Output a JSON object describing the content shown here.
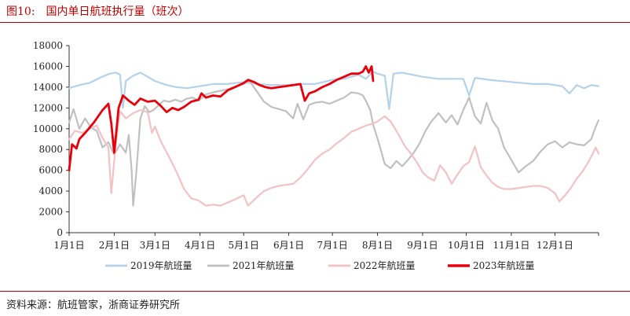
{
  "figure": {
    "number": "图10:",
    "title": "国内单日航班执行量（班次）",
    "source": "资料来源：航班管家，浙商证券研究所"
  },
  "chart_data": {
    "type": "line",
    "title": "国内单日航班执行量（班次）",
    "xlabel": "",
    "ylabel": "",
    "ylim": [
      0,
      18000
    ],
    "yticks": [
      0,
      2000,
      4000,
      6000,
      8000,
      10000,
      12000,
      14000,
      16000,
      18000
    ],
    "x_unit": "day of year (1 = 1月1日)",
    "xlim": [
      1,
      365
    ],
    "xticks": [
      {
        "day": 1,
        "label": "1月1日"
      },
      {
        "day": 32,
        "label": "2月1日"
      },
      {
        "day": 60,
        "label": "3月1日"
      },
      {
        "day": 91,
        "label": "4月1日"
      },
      {
        "day": 121,
        "label": "5月1日"
      },
      {
        "day": 152,
        "label": "6月1日"
      },
      {
        "day": 182,
        "label": "7月1日"
      },
      {
        "day": 213,
        "label": "8月1日"
      },
      {
        "day": 244,
        "label": "9月1日"
      },
      {
        "day": 274,
        "label": "10月1日"
      },
      {
        "day": 305,
        "label": "11月1日"
      },
      {
        "day": 335,
        "label": "12月1日"
      }
    ],
    "grid": false,
    "legend_position": "bottom",
    "series": [
      {
        "name": "2019年航班量",
        "color": "#b4d2ea",
        "width": 2.2,
        "points": [
          [
            1,
            13900
          ],
          [
            8,
            14200
          ],
          [
            15,
            14400
          ],
          [
            22,
            14900
          ],
          [
            29,
            15300
          ],
          [
            33,
            15400
          ],
          [
            36,
            15200
          ],
          [
            38,
            12000
          ],
          [
            40,
            14600
          ],
          [
            45,
            15100
          ],
          [
            50,
            15400
          ],
          [
            55,
            15000
          ],
          [
            60,
            14600
          ],
          [
            68,
            14200
          ],
          [
            75,
            14000
          ],
          [
            82,
            13900
          ],
          [
            91,
            14100
          ],
          [
            100,
            14300
          ],
          [
            110,
            14300
          ],
          [
            121,
            14500
          ],
          [
            130,
            14300
          ],
          [
            140,
            14200
          ],
          [
            150,
            14200
          ],
          [
            160,
            14300
          ],
          [
            170,
            14300
          ],
          [
            182,
            14700
          ],
          [
            190,
            14800
          ],
          [
            200,
            15200
          ],
          [
            205,
            14800
          ],
          [
            210,
            15500
          ],
          [
            213,
            15300
          ],
          [
            218,
            15100
          ],
          [
            221,
            11900
          ],
          [
            224,
            15300
          ],
          [
            230,
            15400
          ],
          [
            244,
            15000
          ],
          [
            255,
            14800
          ],
          [
            265,
            14800
          ],
          [
            272,
            14800
          ],
          [
            276,
            13200
          ],
          [
            280,
            14900
          ],
          [
            290,
            14700
          ],
          [
            305,
            14500
          ],
          [
            320,
            14300
          ],
          [
            330,
            14300
          ],
          [
            340,
            14100
          ],
          [
            345,
            13400
          ],
          [
            350,
            14200
          ],
          [
            355,
            13900
          ],
          [
            360,
            14200
          ],
          [
            365,
            14100
          ]
        ]
      },
      {
        "name": "2021年航班量",
        "color": "#c0c0c0",
        "width": 2.2,
        "points": [
          [
            1,
            10600
          ],
          [
            4,
            11900
          ],
          [
            8,
            10000
          ],
          [
            12,
            11000
          ],
          [
            16,
            10100
          ],
          [
            20,
            9800
          ],
          [
            24,
            8200
          ],
          [
            28,
            8700
          ],
          [
            32,
            7500
          ],
          [
            36,
            8500
          ],
          [
            40,
            7700
          ],
          [
            42,
            9400
          ],
          [
            44,
            6000
          ],
          [
            45,
            2600
          ],
          [
            47,
            5500
          ],
          [
            50,
            11000
          ],
          [
            53,
            12200
          ],
          [
            56,
            11600
          ],
          [
            59,
            11800
          ],
          [
            62,
            12200
          ],
          [
            66,
            12700
          ],
          [
            70,
            12600
          ],
          [
            74,
            12800
          ],
          [
            78,
            12600
          ],
          [
            82,
            12900
          ],
          [
            86,
            13000
          ],
          [
            90,
            12700
          ],
          [
            95,
            13300
          ],
          [
            100,
            13500
          ],
          [
            110,
            13800
          ],
          [
            118,
            14200
          ],
          [
            121,
            14300
          ],
          [
            125,
            14600
          ],
          [
            130,
            13600
          ],
          [
            135,
            12600
          ],
          [
            140,
            12100
          ],
          [
            145,
            11900
          ],
          [
            150,
            11700
          ],
          [
            155,
            11000
          ],
          [
            158,
            12400
          ],
          [
            162,
            10900
          ],
          [
            166,
            12300
          ],
          [
            170,
            12500
          ],
          [
            175,
            12600
          ],
          [
            180,
            12400
          ],
          [
            185,
            12700
          ],
          [
            190,
            13000
          ],
          [
            195,
            13500
          ],
          [
            200,
            13400
          ],
          [
            203,
            13200
          ],
          [
            205,
            12700
          ],
          [
            208,
            11800
          ],
          [
            210,
            10400
          ],
          [
            214,
            8600
          ],
          [
            218,
            6600
          ],
          [
            222,
            6200
          ],
          [
            226,
            6900
          ],
          [
            230,
            6400
          ],
          [
            234,
            7000
          ],
          [
            238,
            7700
          ],
          [
            242,
            8600
          ],
          [
            246,
            9800
          ],
          [
            250,
            10700
          ],
          [
            255,
            11500
          ],
          [
            260,
            10600
          ],
          [
            264,
            11300
          ],
          [
            268,
            10400
          ],
          [
            272,
            11800
          ],
          [
            276,
            13000
          ],
          [
            280,
            11200
          ],
          [
            284,
            10500
          ],
          [
            288,
            12500
          ],
          [
            292,
            10800
          ],
          [
            296,
            10000
          ],
          [
            300,
            8200
          ],
          [
            305,
            7000
          ],
          [
            310,
            5800
          ],
          [
            315,
            6400
          ],
          [
            320,
            6900
          ],
          [
            325,
            7800
          ],
          [
            330,
            8500
          ],
          [
            335,
            8800
          ],
          [
            340,
            8200
          ],
          [
            345,
            8700
          ],
          [
            350,
            8500
          ],
          [
            355,
            8400
          ],
          [
            360,
            9000
          ],
          [
            363,
            10200
          ],
          [
            365,
            10800
          ]
        ]
      },
      {
        "name": "2022年航班量",
        "color": "#f2c2c4",
        "width": 2.2,
        "points": [
          [
            1,
            9000
          ],
          [
            5,
            9800
          ],
          [
            10,
            9600
          ],
          [
            15,
            10000
          ],
          [
            20,
            10300
          ],
          [
            24,
            9100
          ],
          [
            28,
            8200
          ],
          [
            30,
            3800
          ],
          [
            33,
            8500
          ],
          [
            36,
            11700
          ],
          [
            40,
            11000
          ],
          [
            45,
            11500
          ],
          [
            50,
            11800
          ],
          [
            55,
            11600
          ],
          [
            58,
            9600
          ],
          [
            60,
            10200
          ],
          [
            64,
            8800
          ],
          [
            70,
            7200
          ],
          [
            75,
            5800
          ],
          [
            80,
            4200
          ],
          [
            85,
            3300
          ],
          [
            90,
            3100
          ],
          [
            95,
            2600
          ],
          [
            100,
            2700
          ],
          [
            105,
            2600
          ],
          [
            110,
            2900
          ],
          [
            115,
            3200
          ],
          [
            121,
            3600
          ],
          [
            124,
            2600
          ],
          [
            130,
            3400
          ],
          [
            135,
            4000
          ],
          [
            140,
            4300
          ],
          [
            145,
            4500
          ],
          [
            150,
            4600
          ],
          [
            155,
            4700
          ],
          [
            160,
            5300
          ],
          [
            165,
            6100
          ],
          [
            170,
            7000
          ],
          [
            175,
            7600
          ],
          [
            180,
            8000
          ],
          [
            185,
            8600
          ],
          [
            190,
            9100
          ],
          [
            195,
            9700
          ],
          [
            200,
            10000
          ],
          [
            205,
            10300
          ],
          [
            210,
            10500
          ],
          [
            213,
            10700
          ],
          [
            218,
            11200
          ],
          [
            222,
            10700
          ],
          [
            226,
            9800
          ],
          [
            232,
            8300
          ],
          [
            236,
            7600
          ],
          [
            240,
            6800
          ],
          [
            244,
            5800
          ],
          [
            248,
            5300
          ],
          [
            252,
            5000
          ],
          [
            256,
            6500
          ],
          [
            260,
            5800
          ],
          [
            264,
            4700
          ],
          [
            268,
            5600
          ],
          [
            272,
            6400
          ],
          [
            276,
            6800
          ],
          [
            280,
            8300
          ],
          [
            284,
            6300
          ],
          [
            288,
            5500
          ],
          [
            292,
            4800
          ],
          [
            296,
            4400
          ],
          [
            300,
            4200
          ],
          [
            305,
            4200
          ],
          [
            310,
            4300
          ],
          [
            315,
            4400
          ],
          [
            320,
            4500
          ],
          [
            325,
            4500
          ],
          [
            330,
            4300
          ],
          [
            335,
            3800
          ],
          [
            338,
            3000
          ],
          [
            342,
            3600
          ],
          [
            346,
            4300
          ],
          [
            350,
            5200
          ],
          [
            354,
            5900
          ],
          [
            358,
            6800
          ],
          [
            361,
            7600
          ],
          [
            363,
            8200
          ],
          [
            365,
            7600
          ]
        ]
      },
      {
        "name": "2023年航班量",
        "color": "#e8000b",
        "width": 2.8,
        "points": [
          [
            1,
            6000
          ],
          [
            3,
            8500
          ],
          [
            6,
            8100
          ],
          [
            8,
            9000
          ],
          [
            12,
            9600
          ],
          [
            18,
            10600
          ],
          [
            24,
            11800
          ],
          [
            28,
            12400
          ],
          [
            30,
            10500
          ],
          [
            32,
            7700
          ],
          [
            35,
            12000
          ],
          [
            38,
            13200
          ],
          [
            42,
            12700
          ],
          [
            46,
            12300
          ],
          [
            50,
            12900
          ],
          [
            55,
            12600
          ],
          [
            60,
            12700
          ],
          [
            64,
            12200
          ],
          [
            68,
            11600
          ],
          [
            72,
            12000
          ],
          [
            76,
            11800
          ],
          [
            80,
            12100
          ],
          [
            85,
            12600
          ],
          [
            90,
            12800
          ],
          [
            92,
            13400
          ],
          [
            95,
            13000
          ],
          [
            100,
            13200
          ],
          [
            105,
            13100
          ],
          [
            110,
            13700
          ],
          [
            115,
            14000
          ],
          [
            121,
            14400
          ],
          [
            124,
            14700
          ],
          [
            128,
            14500
          ],
          [
            132,
            14200
          ],
          [
            136,
            14000
          ],
          [
            140,
            13900
          ],
          [
            145,
            14000
          ],
          [
            150,
            14100
          ],
          [
            155,
            14200
          ],
          [
            160,
            14300
          ],
          [
            163,
            12700
          ],
          [
            166,
            13400
          ],
          [
            170,
            13600
          ],
          [
            175,
            14000
          ],
          [
            180,
            14300
          ],
          [
            185,
            14700
          ],
          [
            190,
            15000
          ],
          [
            195,
            15300
          ],
          [
            200,
            15300
          ],
          [
            203,
            15500
          ],
          [
            205,
            16000
          ],
          [
            207,
            15400
          ],
          [
            209,
            16000
          ],
          [
            210,
            14600
          ]
        ]
      }
    ]
  }
}
